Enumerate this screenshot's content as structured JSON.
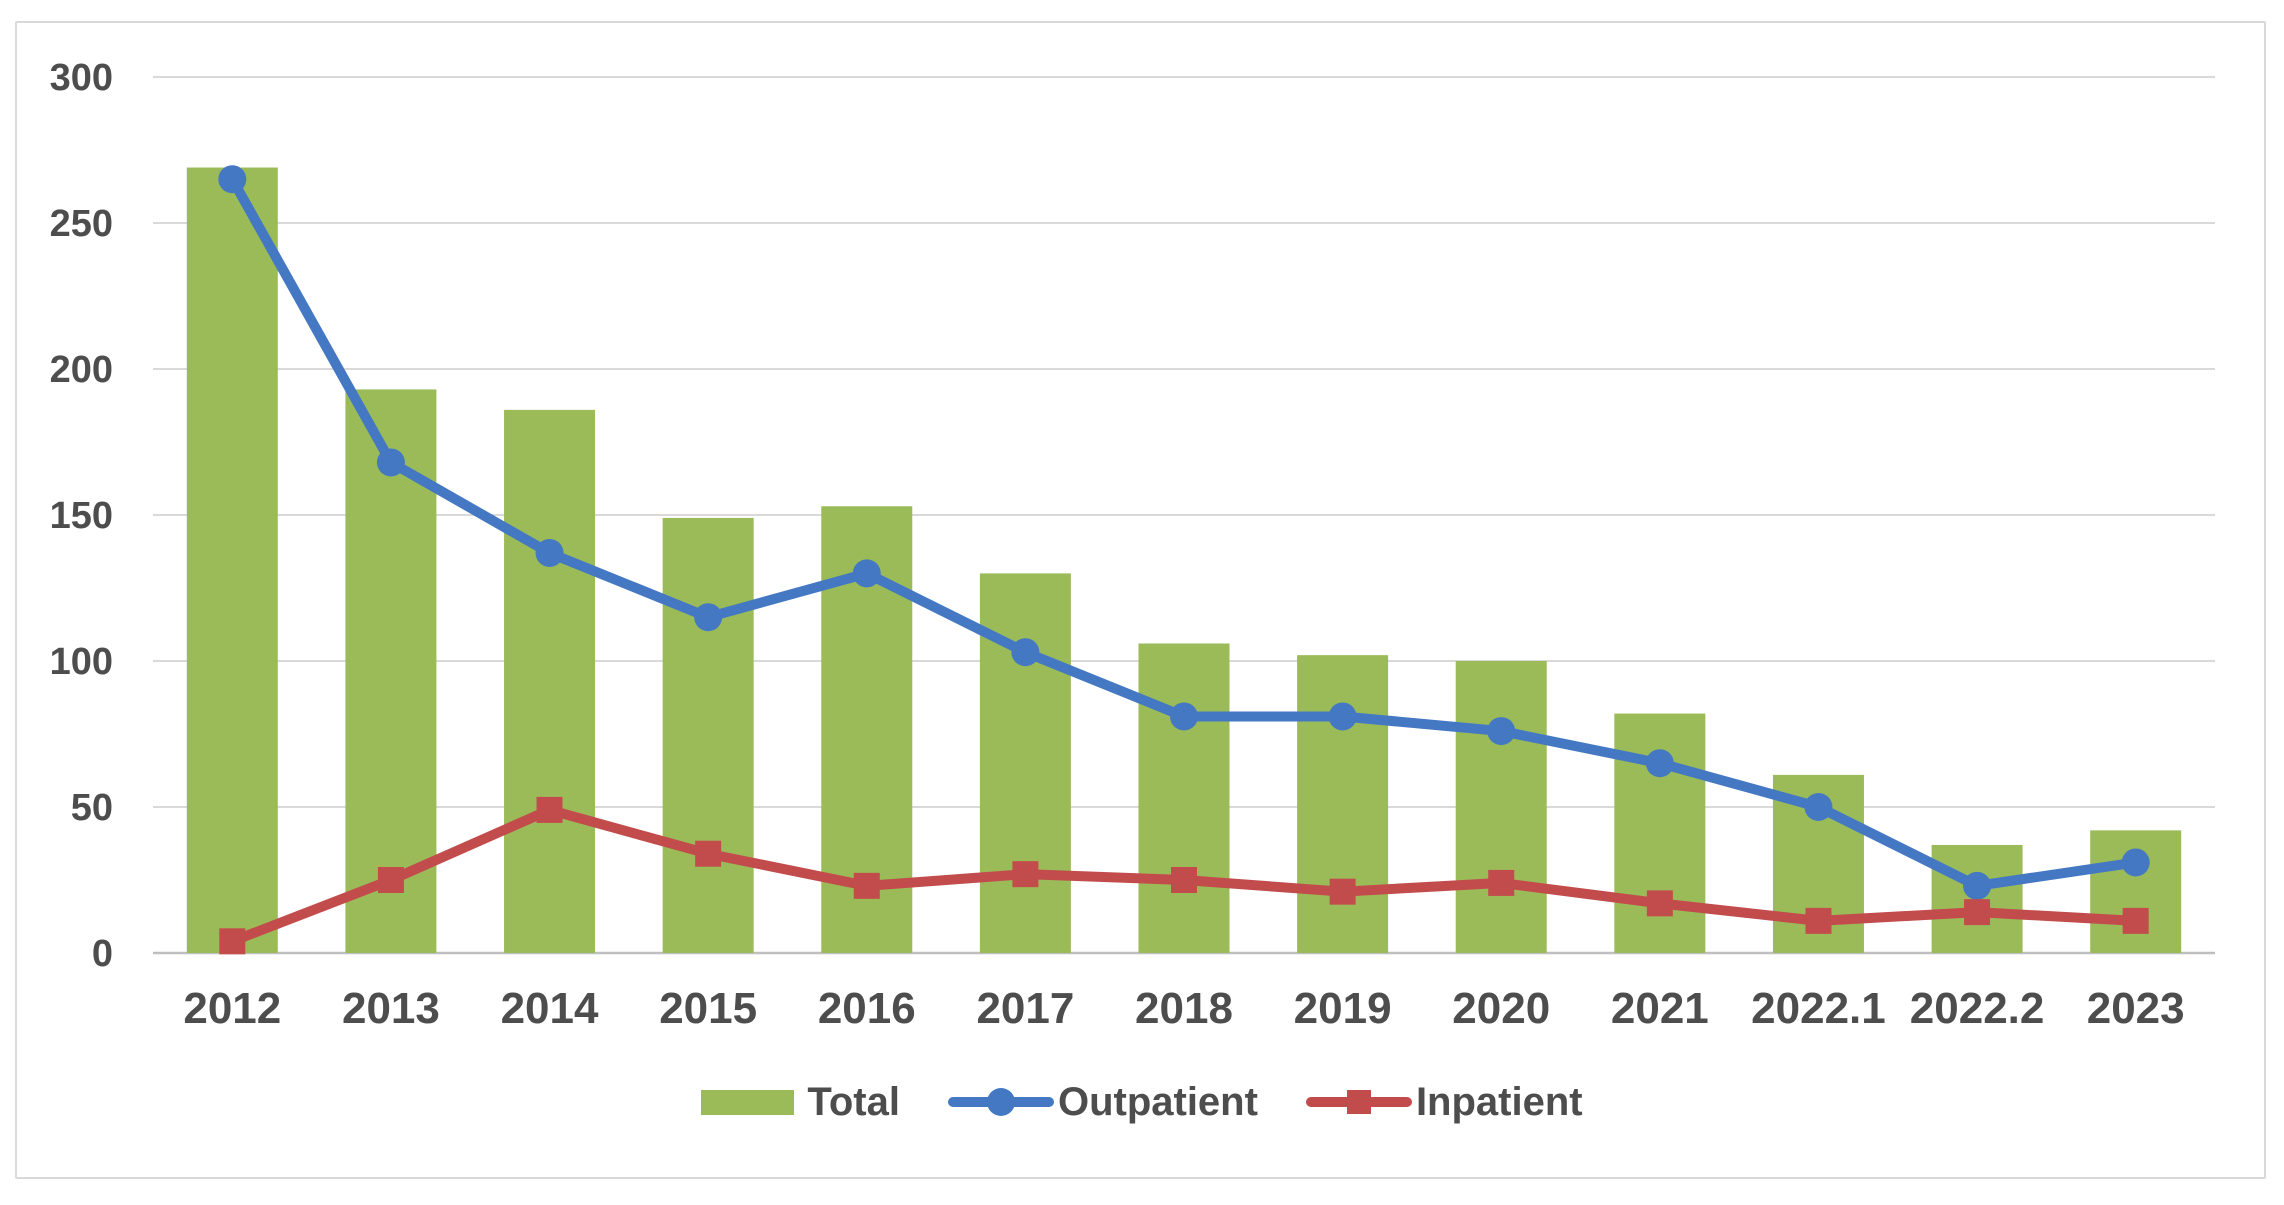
{
  "chart_data": {
    "type": "combo-bar-line",
    "title": "",
    "xlabel": "",
    "ylabel": "",
    "categories": [
      "2012",
      "2013",
      "2014",
      "2015",
      "2016",
      "2017",
      "2018",
      "2019",
      "2020",
      "2021",
      "2022.1",
      "2022.2",
      "2023"
    ],
    "series": [
      {
        "name": "Total",
        "type": "bar",
        "marker": "rect",
        "color": "#9bbb59",
        "values": [
          269,
          193,
          186,
          149,
          153,
          130,
          106,
          102,
          100,
          82,
          61,
          37,
          42
        ]
      },
      {
        "name": "Outpatient",
        "type": "line",
        "marker": "circle",
        "color": "#4478c3",
        "values": [
          265,
          168,
          137,
          115,
          130,
          103,
          81,
          81,
          76,
          65,
          50,
          23,
          31
        ]
      },
      {
        "name": "Inpatient",
        "type": "line",
        "marker": "square",
        "color": "#c24c4c",
        "values": [
          4,
          25,
          49,
          34,
          23,
          27,
          25,
          21,
          24,
          17,
          11,
          14,
          11
        ]
      }
    ],
    "ylim": [
      0,
      300
    ],
    "ytick_step": 50,
    "ytick_labels": [
      "0",
      "50",
      "100",
      "150",
      "200",
      "250",
      "300"
    ],
    "grid": true,
    "legend_position": "bottom"
  },
  "colors": {
    "background": "#ffffff",
    "border": "#d9d9d9",
    "gridline": "#d9d9d9",
    "axis_line": "#bfbfbf",
    "label_text": "#4d4d4d"
  }
}
